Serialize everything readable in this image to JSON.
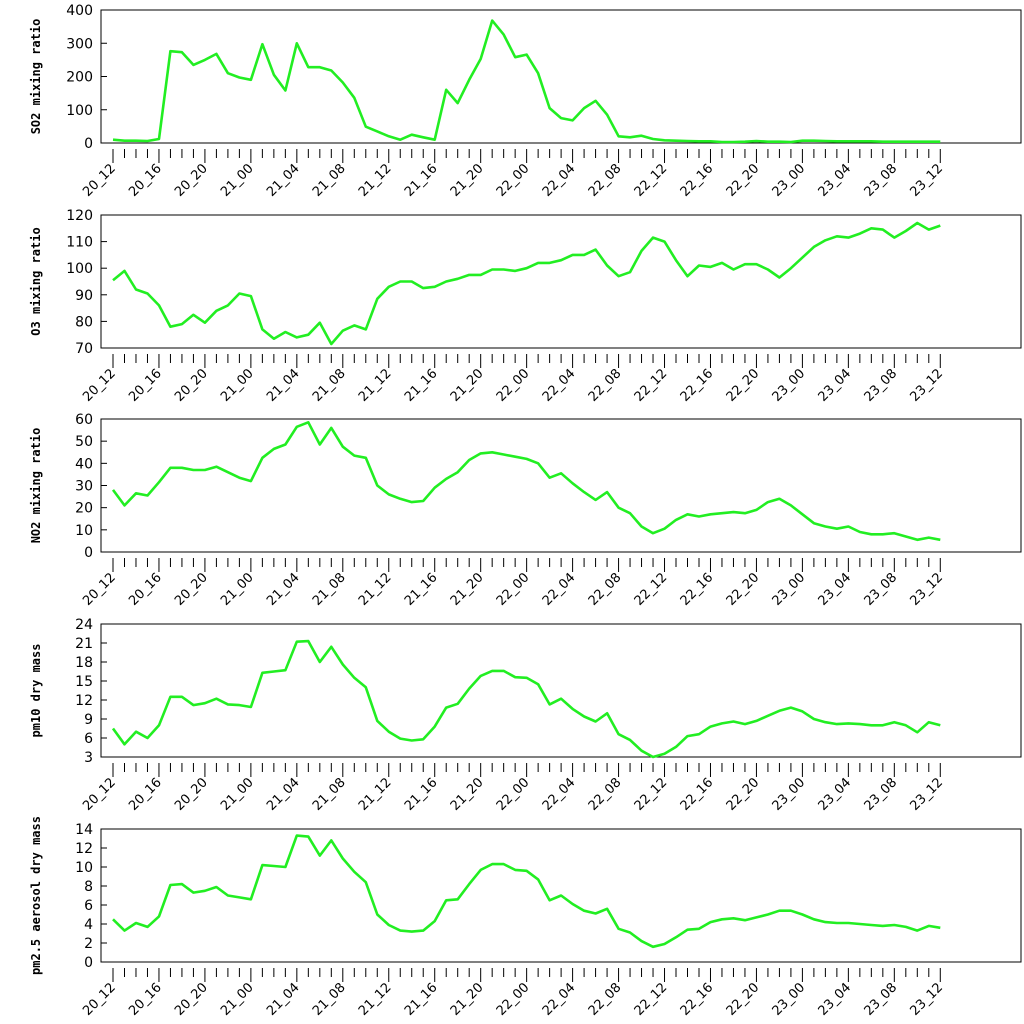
{
  "x_tick_labels": [
    "20_12",
    "20_16",
    "20_20",
    "21_00",
    "21_04",
    "21_08",
    "21_12",
    "21_16",
    "21_20",
    "22_00",
    "22_04",
    "22_08",
    "22_12",
    "22_16",
    "22_20",
    "23_00",
    "23_04",
    "23_08",
    "23_12"
  ],
  "line_color": "#22ee22",
  "chart_data": [
    {
      "type": "line",
      "ylabel": "SO2 mixing ratio",
      "ylim": [
        0,
        400
      ],
      "yticks": [
        0,
        100,
        200,
        300,
        400
      ],
      "x": [
        "20_12",
        "20_13",
        "20_14",
        "20_15",
        "20_16",
        "20_17",
        "20_18",
        "20_19",
        "20_20",
        "20_21",
        "20_22",
        "20_23",
        "21_00",
        "21_01",
        "21_02",
        "21_03",
        "21_04",
        "21_05",
        "21_06",
        "21_07",
        "21_08",
        "21_09",
        "21_10",
        "21_11",
        "21_12",
        "21_13",
        "21_14",
        "21_15",
        "21_16",
        "21_17",
        "21_18",
        "21_19",
        "21_20",
        "21_21",
        "21_22",
        "21_23",
        "22_00",
        "22_01",
        "22_02",
        "22_03",
        "22_04",
        "22_05",
        "22_06",
        "22_07",
        "22_08",
        "22_09",
        "22_10",
        "22_11",
        "22_12",
        "22_13",
        "22_14",
        "22_15",
        "22_16",
        "22_17",
        "22_18",
        "22_19",
        "22_20",
        "22_21",
        "22_22",
        "22_23",
        "23_00",
        "23_01",
        "23_02",
        "23_03",
        "23_04",
        "23_05",
        "23_06",
        "23_07",
        "23_08",
        "23_09",
        "23_10",
        "23_11",
        "23_12"
      ],
      "values": [
        10,
        7,
        7,
        6,
        12,
        276,
        273,
        235,
        250,
        268,
        210,
        197,
        190,
        297,
        205,
        158,
        300,
        228,
        228,
        218,
        182,
        136,
        49,
        35,
        20,
        10,
        25,
        17,
        10,
        160,
        120,
        190,
        253,
        368,
        326,
        258,
        266,
        210,
        105,
        75,
        68,
        105,
        127,
        85,
        20,
        17,
        22,
        12,
        8,
        7,
        6,
        5,
        5,
        3,
        3,
        4,
        6,
        4,
        4,
        3,
        7,
        7,
        6,
        5,
        5,
        5,
        5,
        4,
        4,
        4,
        4,
        4,
        4
      ]
    },
    {
      "type": "line",
      "ylabel": "O3 mixing ratio",
      "ylim": [
        70,
        120
      ],
      "yticks": [
        70,
        80,
        90,
        100,
        110,
        120
      ],
      "values": [
        95.5,
        99,
        92,
        90.5,
        86,
        78,
        79,
        82.5,
        79.5,
        84,
        86,
        90.5,
        89.5,
        77,
        73.5,
        76,
        74,
        75,
        79.5,
        71.5,
        76.5,
        78.5,
        77,
        88.5,
        93,
        95,
        95,
        92.5,
        93,
        95,
        96,
        97.5,
        97.5,
        99.5,
        99.5,
        99,
        100,
        102,
        102,
        103,
        105,
        105,
        107,
        101,
        97,
        98.5,
        106.5,
        111.5,
        110,
        103,
        97,
        101,
        100.5,
        102,
        99.5,
        101.5,
        101.5,
        99.5,
        96.5,
        100,
        104,
        108,
        110.5,
        112,
        111.5,
        113,
        115,
        114.5,
        111.5,
        114,
        117,
        114.5,
        116
      ]
    },
    {
      "type": "line",
      "ylabel": "NO2 mixing ratio",
      "ylim": [
        0,
        60
      ],
      "yticks": [
        0,
        10,
        20,
        30,
        40,
        50,
        60
      ],
      "values": [
        28,
        21,
        26.5,
        25.5,
        31.5,
        38,
        38,
        37,
        37,
        38.5,
        36,
        33.5,
        32,
        42.5,
        46.5,
        48.5,
        56.5,
        58.5,
        48.5,
        56,
        47.5,
        43.5,
        42.5,
        30,
        26,
        24,
        22.5,
        23,
        29,
        33,
        36,
        41.5,
        44.5,
        45,
        44,
        43,
        42,
        40,
        33.5,
        35.5,
        31,
        27,
        23.5,
        27,
        20,
        17.5,
        11.5,
        8.5,
        10.5,
        14.5,
        17,
        16,
        17,
        17.5,
        18,
        17.5,
        19,
        22.5,
        24,
        21,
        17,
        13,
        11.5,
        10.5,
        11.5,
        9,
        8,
        8,
        8.5,
        7,
        5.5,
        6.5,
        5.5
      ]
    },
    {
      "type": "line",
      "ylabel": "pm10 dry mass",
      "ylim": [
        3,
        24
      ],
      "yticks": [
        3,
        6,
        9,
        12,
        15,
        18,
        21,
        24
      ],
      "values": [
        7.5,
        5,
        7,
        6,
        8,
        12.5,
        12.5,
        11.2,
        11.5,
        12.2,
        11.3,
        11.2,
        10.9,
        16.3,
        16.5,
        16.7,
        21.2,
        21.3,
        18,
        20.4,
        17.6,
        15.5,
        14,
        8.7,
        7,
        5.9,
        5.6,
        5.8,
        7.8,
        10.8,
        11.4,
        13.8,
        15.8,
        16.6,
        16.6,
        15.6,
        15.5,
        14.5,
        11.3,
        12.2,
        10.6,
        9.4,
        8.6,
        9.9,
        6.6,
        5.7,
        4,
        3,
        3.5,
        4.6,
        6.3,
        6.6,
        7.8,
        8.3,
        8.6,
        8.2,
        8.7,
        9.5,
        10.3,
        10.8,
        10.2,
        9,
        8.5,
        8.2,
        8.3,
        8.2,
        8,
        8,
        8.5,
        8,
        6.9,
        8.5,
        8
      ]
    },
    {
      "type": "line",
      "ylabel": "pm2.5 aerosol dry mass",
      "ylim": [
        0,
        14
      ],
      "yticks": [
        0,
        2,
        4,
        6,
        8,
        10,
        12,
        14
      ],
      "values": [
        4.5,
        3.3,
        4.1,
        3.7,
        4.8,
        8.1,
        8.2,
        7.3,
        7.5,
        7.9,
        7,
        6.8,
        6.6,
        10.2,
        10.1,
        10,
        13.3,
        13.2,
        11.2,
        12.8,
        10.9,
        9.5,
        8.4,
        5,
        3.9,
        3.3,
        3.2,
        3.3,
        4.3,
        6.5,
        6.6,
        8.2,
        9.7,
        10.3,
        10.3,
        9.7,
        9.6,
        8.7,
        6.5,
        7,
        6.1,
        5.4,
        5.1,
        5.6,
        3.5,
        3.1,
        2.2,
        1.6,
        1.9,
        2.6,
        3.4,
        3.5,
        4.2,
        4.5,
        4.6,
        4.4,
        4.7,
        5,
        5.4,
        5.4,
        5,
        4.5,
        4.2,
        4.1,
        4.1,
        4,
        3.9,
        3.8,
        3.9,
        3.7,
        3.3,
        3.8,
        3.6
      ]
    }
  ]
}
